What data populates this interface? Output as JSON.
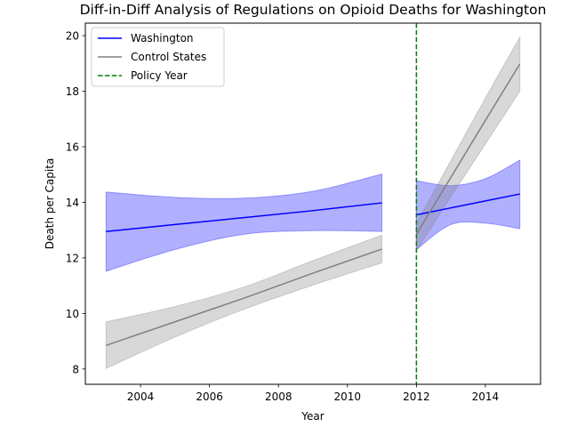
{
  "chart_data": {
    "type": "line",
    "title": "Diff-in-Diff Analysis of Regulations on Opioid Deaths for Washington",
    "xlabel": "Year",
    "ylabel": "Death per Capita",
    "xlim": [
      2002.4,
      2015.6
    ],
    "ylim": [
      7.45,
      20.45
    ],
    "xticks": [
      2004,
      2006,
      2008,
      2010,
      2012,
      2014
    ],
    "yticks": [
      8,
      10,
      12,
      14,
      16,
      18,
      20
    ],
    "grid": false,
    "legend_position": "top-left",
    "policy_line": {
      "x": 2012,
      "label": "Policy Year",
      "color": "#008000"
    },
    "series": [
      {
        "name": "Washington",
        "color": "#0000ff",
        "band_color": "#0000ff",
        "segments": [
          {
            "x": [
              2003,
              2005,
              2007,
              2009,
              2011
            ],
            "y": [
              12.95,
              13.2,
              13.45,
              13.7,
              13.98
            ],
            "lower": [
              11.52,
              12.3,
              12.85,
              12.98,
              12.95
            ],
            "upper": [
              14.37,
              14.18,
              14.15,
              14.4,
              15.02
            ]
          },
          {
            "x": [
              2012,
              2013,
              2014,
              2015
            ],
            "y": [
              13.55,
              13.8,
              14.05,
              14.3
            ],
            "lower": [
              12.3,
              13.2,
              13.25,
              13.05
            ],
            "upper": [
              14.78,
              14.6,
              14.85,
              15.52
            ]
          }
        ]
      },
      {
        "name": "Control States",
        "color": "#808080",
        "band_color": "#808080",
        "segments": [
          {
            "x": [
              2003,
              2005,
              2007,
              2009,
              2011
            ],
            "y": [
              8.85,
              9.7,
              10.55,
              11.45,
              12.32
            ],
            "lower": [
              8.02,
              9.15,
              10.15,
              11.02,
              11.82
            ],
            "upper": [
              9.7,
              10.25,
              10.95,
              11.9,
              12.82
            ]
          },
          {
            "x": [
              2012,
              2013,
              2014,
              2015
            ],
            "y": [
              12.85,
              14.9,
              16.95,
              18.98
            ],
            "lower": [
              12.25,
              14.2,
              16.1,
              18.0
            ],
            "upper": [
              13.25,
              15.5,
              17.75,
              19.95
            ]
          }
        ]
      }
    ]
  }
}
